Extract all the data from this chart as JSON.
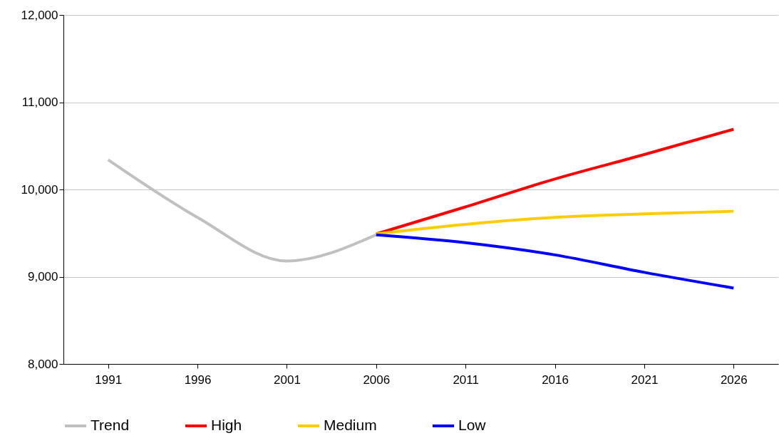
{
  "chart_data": {
    "type": "line",
    "categories": [
      "1991",
      "1996",
      "2001",
      "2006",
      "2011",
      "2016",
      "2021",
      "2026"
    ],
    "series": [
      {
        "name": "Trend",
        "color": "#c0c0c0",
        "values": [
          10340,
          9680,
          9180,
          9480,
          null,
          null,
          null,
          null
        ]
      },
      {
        "name": "High",
        "color": "#ff0000",
        "values": [
          null,
          null,
          null,
          9490,
          9800,
          10120,
          10400,
          10690
        ]
      },
      {
        "name": "Medium",
        "color": "#ffcc00",
        "values": [
          null,
          null,
          null,
          9490,
          9600,
          9680,
          9720,
          9750
        ]
      },
      {
        "name": "Low",
        "color": "#0000ff",
        "values": [
          null,
          null,
          null,
          9480,
          9390,
          9250,
          9050,
          8870
        ]
      }
    ],
    "ylim": [
      8000,
      12000
    ],
    "yticks": [
      {
        "value": 8000,
        "label": "8,000"
      },
      {
        "value": 9000,
        "label": "9,000"
      },
      {
        "value": 10000,
        "label": "10,000"
      },
      {
        "value": 11000,
        "label": "11,000"
      },
      {
        "value": 12000,
        "label": "12,000"
      }
    ],
    "grid": "y",
    "legend": "bottom",
    "marker": "none",
    "line_style": "solid"
  }
}
